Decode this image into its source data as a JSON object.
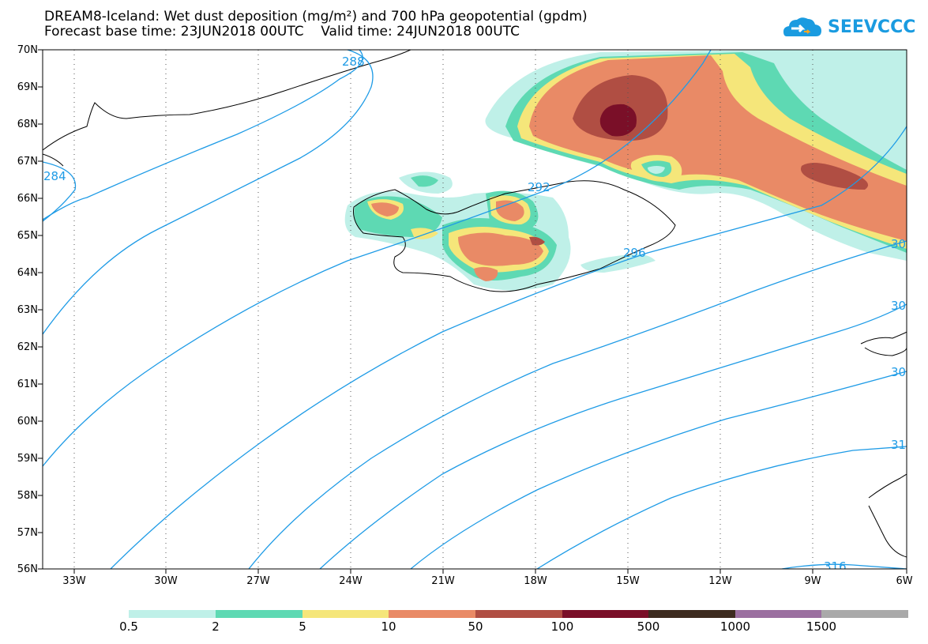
{
  "title": {
    "line1": "DREAM8-Iceland: Wet dust deposition (mg/m²) and 700 hPa geopotential (gpdm)",
    "line2": "Forecast base time: 23JUN2018 00UTC    Valid time: 24JUN2018 00UTC"
  },
  "logo": {
    "text": "SEEVCCC",
    "icon": "cloud-logo-icon",
    "color": "#1a9be0"
  },
  "map": {
    "lat_labels": [
      "70N",
      "69N",
      "68N",
      "67N",
      "66N",
      "65N",
      "64N",
      "63N",
      "62N",
      "61N",
      "60N",
      "59N",
      "58N",
      "57N",
      "56N"
    ],
    "lon_labels": [
      "33W",
      "30W",
      "27W",
      "24W",
      "21W",
      "18W",
      "15W",
      "12W",
      "9W",
      "6W"
    ],
    "contour_labels": [
      "288",
      "284",
      "292",
      "296",
      "30",
      "30",
      "30",
      "31",
      "316"
    ],
    "contour_color": "#1e9be6"
  },
  "legend": {
    "labels": [
      "0.5",
      "2",
      "5",
      "10",
      "50",
      "100",
      "500",
      "1000",
      "1500"
    ],
    "colors": [
      "#bff0e8",
      "#5ed9b3",
      "#f5e67a",
      "#e98a66",
      "#b04e43",
      "#7a0f28",
      "#3d2b1f",
      "#9b6fa0",
      "#a9a9a9"
    ]
  }
}
